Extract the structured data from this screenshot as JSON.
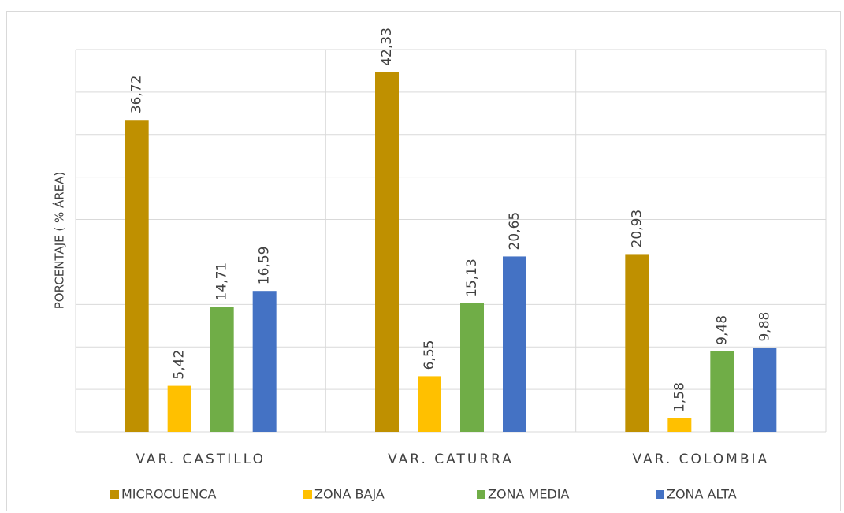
{
  "chart_data": {
    "type": "bar",
    "y_label": "PORCENTAJE ( % ÁREA)",
    "categories": [
      "VAR. CASTILLO",
      "VAR. CATURRA",
      "VAR. COLOMBIA"
    ],
    "series": [
      {
        "name": "MICROCUENCA",
        "color": "#bf9000",
        "values": [
          36.72,
          42.33,
          20.93
        ],
        "value_labels": [
          "36,72",
          "42,33",
          "20,93"
        ]
      },
      {
        "name": "ZONA BAJA",
        "color": "#ffc000",
        "values": [
          5.42,
          6.55,
          1.58
        ],
        "value_labels": [
          "5,42",
          "6,55",
          "1,58"
        ]
      },
      {
        "name": "ZONA MEDIA",
        "color": "#70ad47",
        "values": [
          14.71,
          15.13,
          9.48
        ],
        "value_labels": [
          "14,71",
          "15,13",
          "9,48"
        ]
      },
      {
        "name": "ZONA ALTA",
        "color": "#4472c4",
        "values": [
          16.59,
          20.65,
          9.88
        ],
        "value_labels": [
          "16,59",
          "20,65",
          "9,88"
        ]
      }
    ],
    "ylim": [
      0,
      45
    ],
    "yticks": [
      0,
      5,
      10,
      15,
      20,
      25,
      30,
      35,
      40,
      45
    ],
    "grid": true
  }
}
